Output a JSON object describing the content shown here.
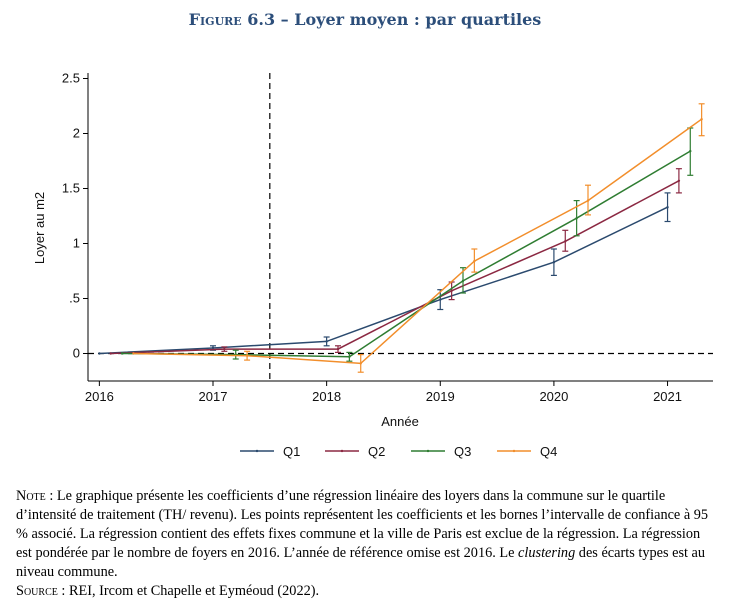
{
  "figure": {
    "label": "Figure 6.3 –",
    "title": "Loyer moyen : par quartiles"
  },
  "chart_data": {
    "type": "line",
    "ylabel": "Loyer au m2",
    "xlabel": "Année",
    "ylim": [
      -0.25,
      2.55
    ],
    "xlim": [
      2015.9,
      2021.4
    ],
    "yticks": [
      0,
      0.5,
      1,
      1.5,
      2,
      2.5
    ],
    "ytick_labels": [
      "0",
      ".5",
      "1",
      "1.5",
      "2",
      "2.5"
    ],
    "xticks": [
      2016,
      2017,
      2018,
      2019,
      2020,
      2021
    ],
    "xtick_labels": [
      "2016",
      "2017",
      "2018",
      "2019",
      "2020",
      "2021"
    ],
    "reference_vline_x": 2017.5,
    "reference_hline_y": 0,
    "legend_position": "bottom",
    "series": [
      {
        "name": "Q1",
        "color": "#2b4a6e",
        "x": [
          2016.0,
          2017.0,
          2018.0,
          2019.0,
          2020.0,
          2021.0
        ],
        "y": [
          0,
          0.05,
          0.11,
          0.49,
          0.83,
          1.33
        ],
        "lo": [
          0,
          0.03,
          0.07,
          0.4,
          0.71,
          1.2
        ],
        "hi": [
          0,
          0.07,
          0.15,
          0.58,
          0.95,
          1.46
        ]
      },
      {
        "name": "Q2",
        "color": "#8b2842",
        "x": [
          2016.1,
          2017.1,
          2018.1,
          2019.1,
          2020.1,
          2021.1
        ],
        "y": [
          0,
          0.04,
          0.04,
          0.57,
          1.02,
          1.57
        ],
        "lo": [
          0,
          0.02,
          0.01,
          0.49,
          0.93,
          1.46
        ],
        "hi": [
          0,
          0.06,
          0.07,
          0.65,
          1.12,
          1.68
        ]
      },
      {
        "name": "Q3",
        "color": "#2f7d32",
        "x": [
          2016.2,
          2017.2,
          2018.2,
          2019.2,
          2020.2,
          2021.2
        ],
        "y": [
          0,
          -0.01,
          -0.03,
          0.66,
          1.23,
          1.84
        ],
        "lo": [
          0,
          -0.05,
          -0.07,
          0.55,
          1.07,
          1.62
        ],
        "hi": [
          0,
          0.03,
          0.01,
          0.78,
          1.39,
          2.05
        ]
      },
      {
        "name": "Q4",
        "color": "#f28e2b",
        "x": [
          2016.3,
          2017.3,
          2018.3,
          2019.3,
          2020.3,
          2021.3
        ],
        "y": [
          0,
          -0.02,
          -0.09,
          0.84,
          1.39,
          2.13
        ],
        "lo": [
          0,
          -0.06,
          -0.17,
          0.74,
          1.26,
          1.98
        ],
        "hi": [
          0,
          0.02,
          -0.01,
          0.95,
          1.53,
          2.27
        ]
      }
    ]
  },
  "note": {
    "label": "Note :",
    "text": "Le graphique présente les coefficients d’une régression linéaire des loyers dans la commune sur le quartile d’intensité de traitement (TH/ revenu). Les points représentent les coefficients et les bornes l’intervalle de confiance à 95 % associé. La régression contient des effets fixes commune et la ville de Paris est exclue de la régression. La régression est pondérée par le nombre de foyers en 2016. L’année de référence omise est 2016. Le ",
    "italic": "clustering",
    "text_end": " des écarts types est au niveau commune."
  },
  "source": {
    "label": "Source :",
    "text": "REI, Ircom et Chapelle et Eyméoud (2022)."
  }
}
